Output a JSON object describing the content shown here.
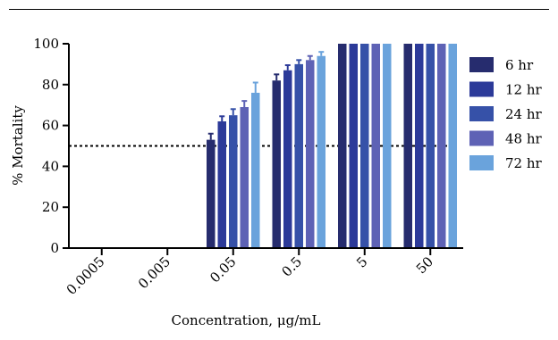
{
  "chart_data": {
    "type": "bar",
    "title": "",
    "xlabel": "Concentration, μg/mL",
    "ylabel": "% Mortality",
    "ylim": [
      0,
      100
    ],
    "yticks": [
      0,
      20,
      40,
      60,
      80,
      100
    ],
    "categories": [
      "0.0005",
      "0.005",
      "0.05",
      "0.5",
      "5",
      "50"
    ],
    "reference_line": {
      "y": 50,
      "style": "dotted"
    },
    "legend_position": "right",
    "series": [
      {
        "name": "6 hr",
        "color": "#262c6e",
        "values": [
          0,
          0,
          53,
          82,
          100,
          100
        ],
        "errors": [
          0,
          0,
          3,
          3,
          0,
          0
        ]
      },
      {
        "name": "12 hr",
        "color": "#2c3a99",
        "values": [
          0,
          0,
          62,
          87,
          100,
          100
        ],
        "errors": [
          0,
          0,
          2.5,
          2.5,
          0,
          0
        ]
      },
      {
        "name": "24 hr",
        "color": "#3651a8",
        "values": [
          0,
          0,
          65,
          90,
          100,
          100
        ],
        "errors": [
          0,
          0,
          3,
          2,
          0,
          0
        ]
      },
      {
        "name": "48 hr",
        "color": "#5e62b5",
        "values": [
          0,
          0,
          69,
          92,
          100,
          100
        ],
        "errors": [
          0,
          0,
          3,
          2,
          0,
          0
        ]
      },
      {
        "name": "72 hr",
        "color": "#6aa3dc",
        "values": [
          0,
          0,
          76,
          94,
          100,
          100
        ],
        "errors": [
          0,
          0,
          5,
          2,
          0,
          0
        ]
      }
    ]
  }
}
